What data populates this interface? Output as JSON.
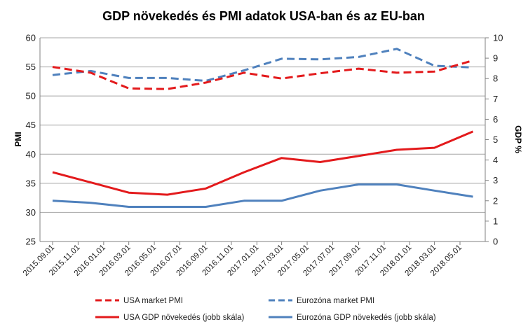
{
  "chart_data": {
    "type": "line",
    "title": "GDP növekedés és PMI adatok USA-ban és az EU-ban",
    "ylabel_left": "PMI",
    "ylabel_right": "GDP %",
    "ylim_left": [
      25,
      60
    ],
    "ylim_right": [
      0,
      10
    ],
    "yticks_left": [
      "25",
      "30",
      "35",
      "40",
      "45",
      "50",
      "55",
      "60"
    ],
    "yticks_right": [
      "0",
      "1",
      "2",
      "3",
      "4",
      "5",
      "6",
      "7",
      "8",
      "9",
      "10"
    ],
    "grid": true,
    "legend_position": "bottom",
    "x_ticks": [
      "2015.09.01",
      "2015.11.01",
      "2016.01.01",
      "2016.03.01",
      "2016.05.01",
      "2016.07.01",
      "2016.09.01",
      "2016.11.01",
      "2017.01.01",
      "2017.03.01",
      "2017.05.01",
      "2017.07.01",
      "2017.09.01",
      "2017.11.01",
      "2018.01.01",
      "2018.03.01",
      "2018.05.01"
    ],
    "series": [
      {
        "name": "USA market PMI",
        "axis": "left",
        "color": "#e31a1c",
        "style": "dashed",
        "x": [
          "2015.09.01",
          "2015.12.01",
          "2016.03.01",
          "2016.06.01",
          "2016.09.01",
          "2016.12.01",
          "2017.03.01",
          "2017.06.01",
          "2017.09.01",
          "2017.12.01",
          "2018.03.01",
          "2018.06.01"
        ],
        "values": [
          55.0,
          54.0,
          51.3,
          51.2,
          52.3,
          54.0,
          53.0,
          53.9,
          54.7,
          54.0,
          54.2,
          56.1
        ]
      },
      {
        "name": "Eurozóna market PMI",
        "axis": "left",
        "color": "#4f81bd",
        "style": "dashed",
        "x": [
          "2015.09.01",
          "2015.12.01",
          "2016.03.01",
          "2016.06.01",
          "2016.09.01",
          "2016.12.01",
          "2017.03.01",
          "2017.06.01",
          "2017.09.01",
          "2017.12.01",
          "2018.03.01",
          "2018.06.01"
        ],
        "values": [
          53.6,
          54.3,
          53.1,
          53.1,
          52.6,
          54.4,
          56.4,
          56.3,
          56.7,
          58.1,
          55.2,
          54.9
        ]
      },
      {
        "name": "USA GDP növekedés (jobb skála)",
        "axis": "right",
        "color": "#e31a1c",
        "style": "solid",
        "x": [
          "2015.09.01",
          "2015.12.01",
          "2016.03.01",
          "2016.06.01",
          "2016.09.01",
          "2016.12.01",
          "2017.03.01",
          "2017.06.01",
          "2017.09.01",
          "2017.12.01",
          "2018.03.01",
          "2018.06.01"
        ],
        "values": [
          3.4,
          2.9,
          2.4,
          2.3,
          2.6,
          3.4,
          4.1,
          3.9,
          4.2,
          4.5,
          4.6,
          5.4
        ]
      },
      {
        "name": "Eurozóna GDP növekedés (jobb skála)",
        "axis": "right",
        "color": "#4f81bd",
        "style": "solid",
        "x": [
          "2015.09.01",
          "2015.12.01",
          "2016.03.01",
          "2016.06.01",
          "2016.09.01",
          "2016.12.01",
          "2017.03.01",
          "2017.06.01",
          "2017.09.01",
          "2017.12.01",
          "2018.03.01",
          "2018.06.01"
        ],
        "values": [
          2.0,
          1.9,
          1.7,
          1.7,
          1.7,
          2.0,
          2.0,
          2.5,
          2.8,
          2.8,
          2.5,
          2.2
        ]
      }
    ]
  }
}
